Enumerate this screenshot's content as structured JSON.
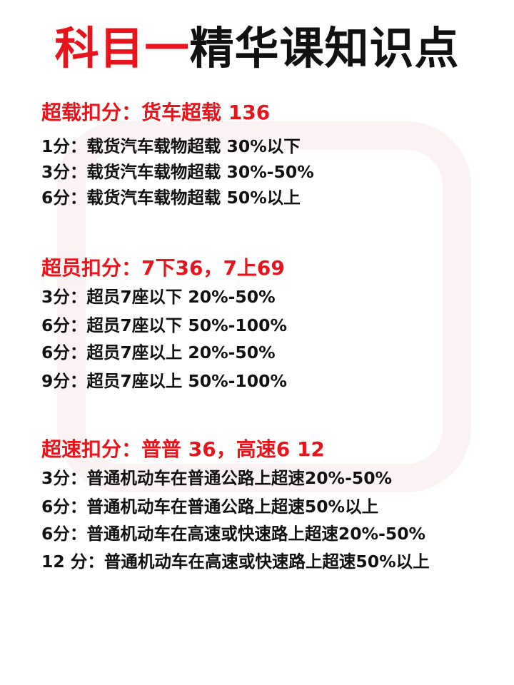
{
  "title": {
    "red_part": "科目一",
    "black_part": "精华课知识点"
  },
  "colors": {
    "accent": "#e8141c",
    "text": "#111111"
  },
  "sections": [
    {
      "heading": "超载扣分：货车超载 136",
      "lines": [
        "1分：载货汽车载物超载 30%以下",
        "3分：载货汽车载物超载 30%-50%",
        "6分：载货汽车载物超载 50%以上"
      ]
    },
    {
      "heading": "超员扣分：7下36，7上69",
      "lines": [
        "3分：超员7座以下 20%-50%",
        "6分：超员7座以下 50%-100%",
        "6分：超员7座以上 20%-50%",
        "9分：超员7座以上 50%-100%"
      ]
    },
    {
      "heading": "超速扣分：普普 36，高速6 12",
      "lines": [
        "3分：普通机动车在普通公路上超速20%-50%",
        "6分：普通机动车在普通公路上超速50%以上",
        "6分：普通机动车在高速或快速路上超速20%-50%",
        "12 分：普通机动车在高速或快速路上超速50%以上"
      ]
    }
  ]
}
